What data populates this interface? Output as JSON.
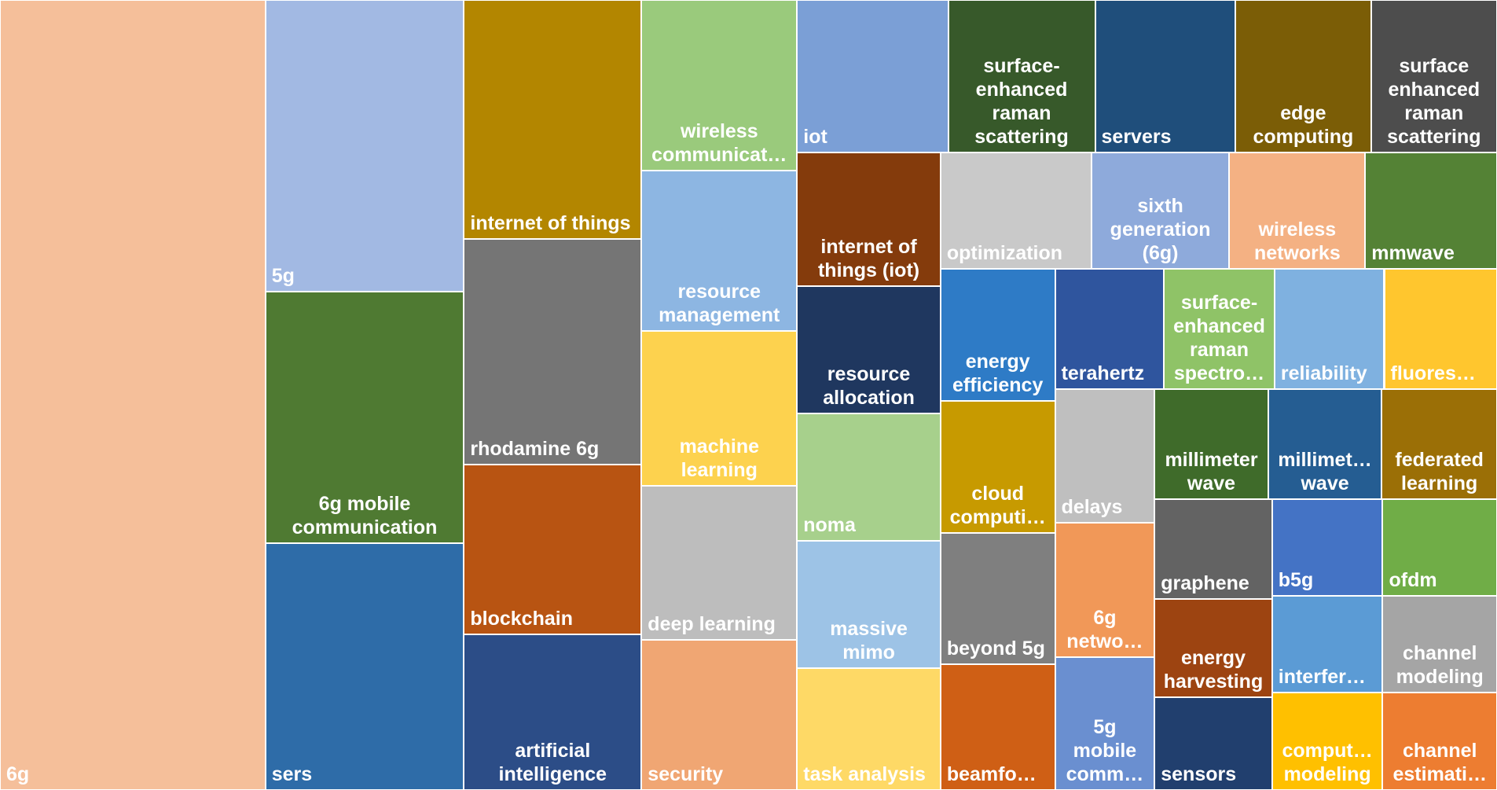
{
  "chart_data": {
    "type": "treemap",
    "categories": [
      "6g",
      "5g",
      "6g mobile communication",
      "sers",
      "internet of things",
      "rhodamine 6g",
      "blockchain",
      "artificial intelligence",
      "wireless communicat…",
      "resource management",
      "machine learning",
      "deep learning",
      "security",
      "iot",
      "surface-enhanced raman scattering",
      "servers",
      "edge computing",
      "surface enhanced raman scattering",
      "internet of things (iot)",
      "resource allocation",
      "noma",
      "massive mimo",
      "task analysis",
      "optimization",
      "sixth generation (6g)",
      "wireless networks",
      "mmwave",
      "energy efficiency",
      "cloud computi…",
      "beyond 5g",
      "beamfo…",
      "terahertz",
      "surface-enhanced raman spectro…",
      "reliability",
      "fluores…",
      "delays",
      "6g netwo…",
      "5g mobile comm…",
      "millimeter wave",
      "millimet… wave",
      "federated learning",
      "graphene",
      "energy harvesting",
      "sensors",
      "b5g",
      "interfer…",
      "comput… modeling",
      "ofdm",
      "channel modeling",
      "channel estimati…"
    ],
    "values": [
      229.6,
      63.4,
      54.7,
      53.7,
      46.5,
      43.9,
      32.9,
      30.3,
      29.0,
      27.4,
      26.4,
      26.2,
      25.6,
      25.3,
      24.6,
      23.5,
      22.7,
      21.1,
      20.9,
      20.0,
      20.0,
      20.0,
      19.2,
      19.1,
      17.5,
      17.2,
      16.7,
      16.6,
      16.6,
      16.4,
      15.8,
      14.4,
      14.6,
      14.5,
      14.9,
      14.6,
      14.6,
      14.5,
      13.7,
      13.7,
      13.9,
      12.8,
      12.7,
      11.9,
      11.7,
      11.7,
      11.8,
      12.1,
      12.1,
      12.2
    ],
    "colors": [
      "#f5bf9a",
      "#a2b9e3",
      "#4f7a32",
      "#2e6ca8",
      "#b38600",
      "#757575",
      "#b85412",
      "#2c4d87",
      "#9aca7c",
      "#8db6e2",
      "#fdd24e",
      "#bdbdbd",
      "#f0a673",
      "#7b9fd6",
      "#37592a",
      "#1f4e7b",
      "#7b5d06",
      "#4d4d4d",
      "#843b0c",
      "#1f375f",
      "#a7d08c",
      "#9dc3e6",
      "#fed966",
      "#c9c9c9",
      "#8eaadb",
      "#f4b183",
      "#548235",
      "#2e7bc6",
      "#c79a00",
      "#7f7f7f",
      "#cf5f15",
      "#2f559e",
      "#8fc367",
      "#7fb1e0",
      "#ffc62e",
      "#bfbfbf",
      "#f19858",
      "#6a8fd0",
      "#3f6b2a",
      "#255d92",
      "#9b6f06",
      "#636363",
      "#9d4411",
      "#213f6e",
      "#4473c5",
      "#5b9bd5",
      "#ffc000",
      "#70ad47",
      "#a5a5a5",
      "#ed7d31"
    ]
  }
}
